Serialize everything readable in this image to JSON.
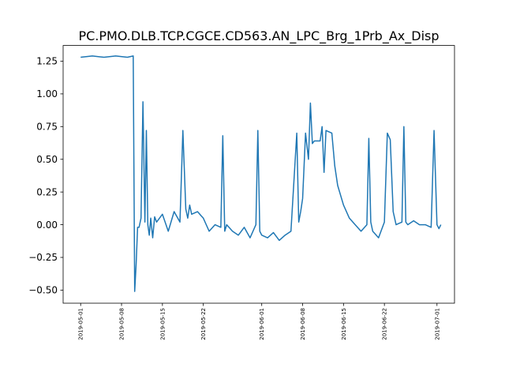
{
  "chart_data": {
    "type": "line",
    "title": "PC.PMO.DLB.TCP.CGCE.CD563.AN_LPC_Brg_1Prb_Ax_Disp",
    "xlabel": "",
    "ylabel": "",
    "xlim": [
      "2019-05-01",
      "2019-07-01"
    ],
    "ylim": [
      -0.6,
      1.37
    ],
    "grid": false,
    "line_color": "#1f77b4",
    "xticks": [
      "2019-05-01",
      "2019-05-08",
      "2019-05-15",
      "2019-05-22",
      "2019-06-01",
      "2019-06-08",
      "2019-06-15",
      "2019-06-22",
      "2019-07-01"
    ],
    "yticks": [
      -0.5,
      -0.25,
      0.0,
      0.25,
      0.5,
      0.75,
      1.0,
      1.25
    ],
    "ytick_labels": [
      "−0.50",
      "−0.25",
      "0.00",
      "0.25",
      "0.50",
      "0.75",
      "1.00",
      "1.25"
    ],
    "series": [
      {
        "x": [
          "2019-05-01",
          "2019-05-03",
          "2019-05-05",
          "2019-05-07",
          "2019-05-09",
          "2019-05-10",
          "2019-05-10",
          "2019-05-10",
          "2019-05-10",
          "2019-05-11",
          "2019-05-11",
          "2019-05-11",
          "2019-05-12",
          "2019-05-12",
          "2019-05-12",
          "2019-05-12",
          "2019-05-13",
          "2019-05-13",
          "2019-05-13",
          "2019-05-14",
          "2019-05-15",
          "2019-05-16",
          "2019-05-17",
          "2019-05-18",
          "2019-05-18",
          "2019-05-19",
          "2019-05-19",
          "2019-05-19",
          "2019-05-20",
          "2019-05-21",
          "2019-05-22",
          "2019-05-23",
          "2019-05-24",
          "2019-05-25",
          "2019-05-25",
          "2019-05-25",
          "2019-05-26",
          "2019-05-27",
          "2019-05-28",
          "2019-05-29",
          "2019-05-30",
          "2019-05-31",
          "2019-05-31",
          "2019-05-31",
          "2019-06-01",
          "2019-06-02",
          "2019-06-03",
          "2019-06-04",
          "2019-06-05",
          "2019-06-06",
          "2019-06-07",
          "2019-06-07",
          "2019-06-07",
          "2019-06-08",
          "2019-06-08",
          "2019-06-09",
          "2019-06-09",
          "2019-06-09",
          "2019-06-10",
          "2019-06-11",
          "2019-06-11",
          "2019-06-11",
          "2019-06-12",
          "2019-06-13",
          "2019-06-13",
          "2019-06-14",
          "2019-06-15",
          "2019-06-16",
          "2019-06-17",
          "2019-06-18",
          "2019-06-19",
          "2019-06-19",
          "2019-06-19",
          "2019-06-20",
          "2019-06-21",
          "2019-06-22",
          "2019-06-22",
          "2019-06-23",
          "2019-06-23",
          "2019-06-24",
          "2019-06-25",
          "2019-06-25",
          "2019-06-25",
          "2019-06-26",
          "2019-06-27",
          "2019-06-28",
          "2019-06-29",
          "2019-06-30",
          "2019-06-30",
          "2019-07-01",
          "2019-07-01",
          "2019-07-01"
        ],
        "y": [
          1.28,
          1.29,
          1.28,
          1.29,
          1.28,
          1.29,
          -0.51,
          -0.3,
          -0.02,
          -0.02,
          0.05,
          0.94,
          0.02,
          0.72,
          0.0,
          -0.08,
          0.05,
          -0.1,
          0.06,
          0.02,
          0.08,
          -0.05,
          0.1,
          0.02,
          0.72,
          0.12,
          0.05,
          0.15,
          0.08,
          0.1,
          0.05,
          -0.05,
          0.0,
          -0.02,
          0.68,
          -0.05,
          0.0,
          -0.05,
          -0.08,
          -0.02,
          -0.1,
          0.0,
          0.72,
          -0.05,
          -0.08,
          -0.1,
          -0.06,
          -0.12,
          -0.08,
          -0.05,
          0.7,
          0.02,
          0.1,
          0.2,
          0.7,
          0.5,
          0.93,
          0.62,
          0.64,
          0.64,
          0.75,
          0.4,
          0.72,
          0.7,
          0.45,
          0.3,
          0.15,
          0.05,
          0.0,
          -0.05,
          0.0,
          0.66,
          0.02,
          -0.05,
          -0.1,
          0.02,
          0.7,
          0.65,
          0.1,
          0.0,
          0.02,
          0.75,
          0.02,
          0.0,
          0.03,
          0.0,
          0.0,
          -0.02,
          0.72,
          0.0,
          -0.03,
          0.0
        ]
      }
    ]
  }
}
